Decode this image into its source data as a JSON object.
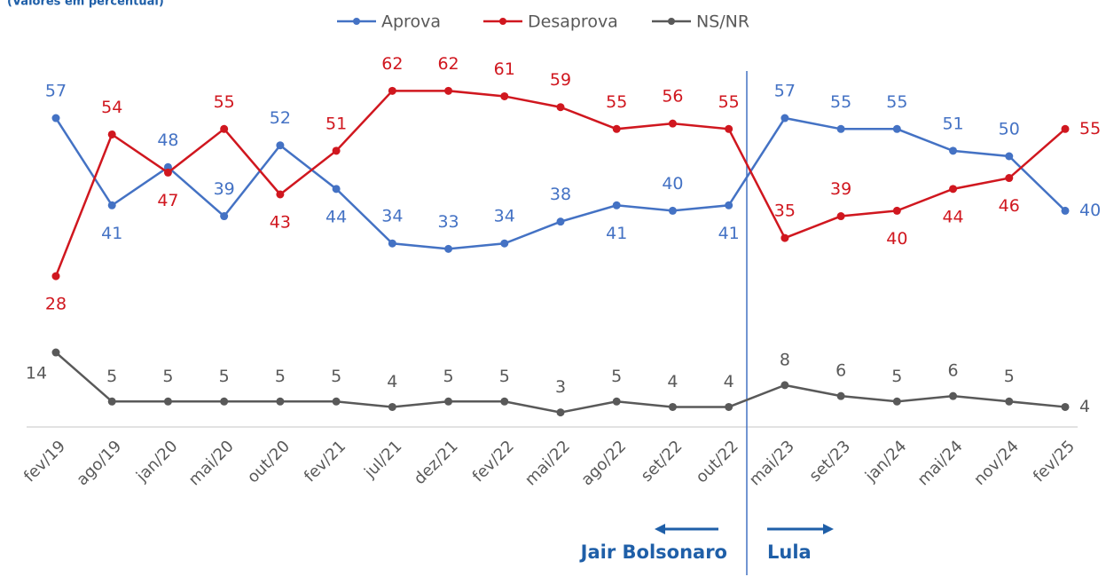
{
  "chart_data": {
    "type": "line",
    "subtitle": "(Valores em percentual)",
    "categories": [
      "fev/19",
      "ago/19",
      "jan/20",
      "mai/20",
      "out/20",
      "fev/21",
      "jul/21",
      "dez/21",
      "fev/22",
      "mai/22",
      "ago/22",
      "set/22",
      "out/22",
      "mai/23",
      "set/23",
      "jan/24",
      "mai/24",
      "nov/24",
      "fev/25"
    ],
    "series": [
      {
        "name": "Aprova",
        "color": "#4472c4",
        "values": [
          57,
          41,
          48,
          39,
          52,
          44,
          34,
          33,
          34,
          38,
          41,
          40,
          41,
          57,
          55,
          55,
          51,
          50,
          40
        ]
      },
      {
        "name": "Desaprova",
        "color": "#d0171f",
        "values": [
          28,
          54,
          47,
          55,
          43,
          51,
          62,
          62,
          61,
          59,
          55,
          56,
          55,
          35,
          39,
          40,
          44,
          46,
          55
        ]
      },
      {
        "name": "NS/NR",
        "color": "#595959",
        "values": [
          14,
          5,
          5,
          5,
          5,
          5,
          4,
          5,
          5,
          3,
          5,
          4,
          4,
          8,
          6,
          5,
          6,
          5,
          4
        ]
      }
    ],
    "legend": "top",
    "annotations": [
      "Jair Bolsonaro",
      "Lula"
    ]
  }
}
